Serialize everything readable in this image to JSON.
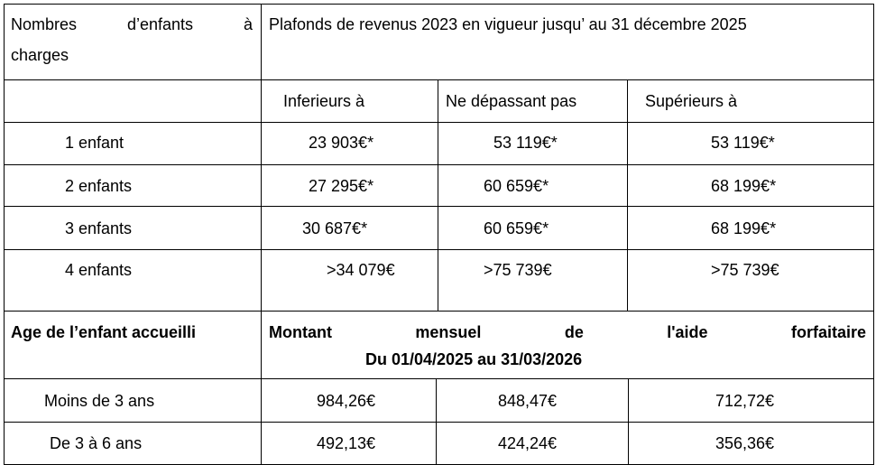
{
  "header": {
    "col1_line1": [
      "Nombres",
      "d’enfants",
      "à"
    ],
    "col1_line2": "charges",
    "title": "Plafonds de revenus 2023 en vigueur jusqu’ au 31 décembre 2025"
  },
  "subheader": {
    "col2": "Inferieurs à",
    "col3": "Ne dépassant pas",
    "col4": "Supérieurs à"
  },
  "income_rows": [
    {
      "label": "1 enfant",
      "c2": "23 903€*",
      "c3": "53 119€*",
      "c4": "53 119€*"
    },
    {
      "label": "2 enfants",
      "c2": "27 295€*",
      "c3": "60 659€*",
      "c4": "68 199€*"
    },
    {
      "label": "3 enfants",
      "c2": "30 687€*",
      "c3": "60 659€*",
      "c4": "68 199€*"
    },
    {
      "label": "4 enfants",
      "c2": ">34 079€",
      "c3": ">75 739€",
      "c4": ">75 739€"
    }
  ],
  "aid_header": {
    "col1": "Age de l’enfant accueilli",
    "line1": [
      "Montant",
      "mensuel",
      "de",
      "l'aide",
      "forfaitaire"
    ],
    "line2": "Du 01/04/2025 au 31/03/2026"
  },
  "aid_rows": [
    {
      "label": "Moins de 3 ans",
      "c2": "984,26€",
      "c3": "848,47€",
      "c4": "712,72€"
    },
    {
      "label": "De 3 à 6 ans",
      "c2": "492,13€",
      "c3": "424,24€",
      "c4": "356,36€"
    }
  ]
}
